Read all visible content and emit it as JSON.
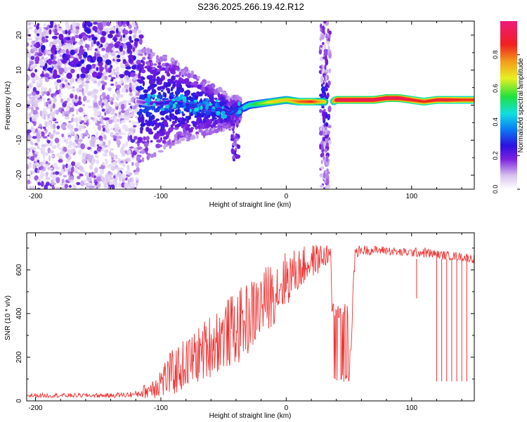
{
  "title": "S236.2025.266.19.42.R12",
  "chart_data": [
    {
      "type": "heatmap",
      "xlabel": "Height of straight line (km)",
      "ylabel": "Frequency (Hz)",
      "xlim": [
        -207,
        150
      ],
      "ylim": [
        -24,
        24
      ],
      "xticks": [
        -200,
        -100,
        0,
        100
      ],
      "yticks": [
        -20,
        -10,
        0,
        10,
        20
      ],
      "colorbar": {
        "label": "Normalized spectral amplitude",
        "range": [
          0,
          1
        ],
        "ticks": [
          "0.0",
          "0.2",
          "0.4",
          "0.6",
          "0.8"
        ],
        "tick_values": [
          0.0,
          0.2,
          0.4,
          0.6,
          0.8
        ]
      },
      "ridge": {
        "x": [
          -118,
          -110,
          -100,
          -90,
          -80,
          -70,
          -60,
          -50,
          -45,
          -40,
          -35,
          -30,
          -20,
          -10,
          0,
          10,
          20,
          30,
          35,
          40,
          50,
          60,
          70,
          80,
          90,
          100,
          110,
          120,
          130,
          140,
          150
        ],
        "freq": [
          1.0,
          0.5,
          0.5,
          1.0,
          0.0,
          -0.5,
          -1.0,
          -1.5,
          -2.5,
          -1.0,
          -1.0,
          0.0,
          0.5,
          1.0,
          1.5,
          1.0,
          1.0,
          1.0,
          0.5,
          1.5,
          1.5,
          1.5,
          1.5,
          2.0,
          2.0,
          1.5,
          1.0,
          1.5,
          1.5,
          1.5,
          1.5
        ],
        "amplitude": [
          0.15,
          0.2,
          0.25,
          0.25,
          0.3,
          0.3,
          0.3,
          0.3,
          0.3,
          0.4,
          0.45,
          0.5,
          0.6,
          0.7,
          0.7,
          0.8,
          0.85,
          0.7,
          0.5,
          0.95,
          0.95,
          0.95,
          0.95,
          0.95,
          0.95,
          0.9,
          0.85,
          0.9,
          0.9,
          0.85,
          0.85
        ]
      }
    },
    {
      "type": "line",
      "xlabel": "Height of straight line (km)",
      "ylabel": "SNR (10 * v/v)",
      "xlim": [
        -207,
        150
      ],
      "ylim": [
        0,
        770
      ],
      "xticks": [
        -200,
        -100,
        0,
        100
      ],
      "yticks": [
        0,
        200,
        400,
        600
      ],
      "series": [
        {
          "name": "SNR",
          "color": "#ee3333",
          "x": [
            -207,
            -180,
            -160,
            -140,
            -120,
            -110,
            -100,
            -90,
            -80,
            -70,
            -60,
            -50,
            -40,
            -30,
            -20,
            -10,
            0,
            10,
            20,
            30,
            35,
            40,
            45,
            50,
            55,
            60,
            70,
            80,
            90,
            100,
            110,
            120,
            130,
            140,
            150
          ],
          "y": [
            25,
            25,
            25,
            25,
            30,
            50,
            90,
            130,
            170,
            210,
            260,
            300,
            330,
            380,
            440,
            500,
            560,
            600,
            640,
            660,
            680,
            120,
            110,
            110,
            680,
            690,
            690,
            690,
            680,
            680,
            680,
            670,
            665,
            660,
            650
          ],
          "noise_amplitude": [
            10,
            10,
            10,
            10,
            15,
            40,
            80,
            110,
            120,
            130,
            150,
            160,
            170,
            170,
            160,
            150,
            130,
            100,
            80,
            60,
            40,
            120,
            120,
            120,
            25,
            25,
            20,
            20,
            20,
            20,
            25,
            20,
            20,
            20,
            20
          ],
          "dropouts": [
            {
              "x": 104,
              "y": 470
            },
            {
              "x": 120,
              "y": 90
            },
            {
              "x": 124,
              "y": 90
            },
            {
              "x": 128,
              "y": 90
            },
            {
              "x": 132,
              "y": 90
            },
            {
              "x": 136,
              "y": 90
            },
            {
              "x": 140,
              "y": 90
            },
            {
              "x": 144,
              "y": 90
            }
          ]
        }
      ]
    }
  ]
}
